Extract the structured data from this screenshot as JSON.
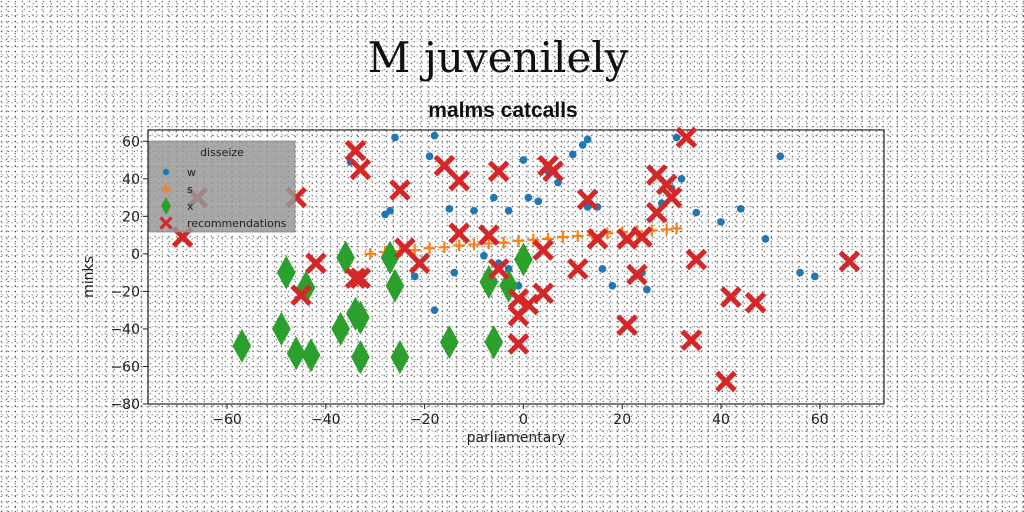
{
  "chart_data": {
    "type": "scatter",
    "title": "M juvenilely",
    "subtitle": "malms catcalls",
    "xlabel": "parliamentary",
    "ylabel": "minks",
    "xlim": [
      -76,
      73
    ],
    "ylim": [
      -80,
      66
    ],
    "xticks": [
      -60,
      -40,
      -20,
      0,
      20,
      40,
      60
    ],
    "yticks": [
      -80,
      -60,
      -40,
      -20,
      0,
      20,
      40,
      60
    ],
    "grid": false,
    "legend": {
      "title": "disseize",
      "placement": "top-left",
      "background": "#999999"
    },
    "series": [
      {
        "name": "w",
        "marker": "circle",
        "color": "#1f77b4",
        "points": [
          [
            -35,
            49
          ],
          [
            -26,
            62
          ],
          [
            -19,
            52
          ],
          [
            -18,
            63
          ],
          [
            -28,
            21
          ],
          [
            -27,
            23
          ],
          [
            -15,
            24
          ],
          [
            -10,
            23
          ],
          [
            -6,
            30
          ],
          [
            -3,
            23
          ],
          [
            0,
            50
          ],
          [
            1,
            30
          ],
          [
            3,
            28
          ],
          [
            5,
            44
          ],
          [
            7,
            38
          ],
          [
            10,
            53
          ],
          [
            12,
            58
          ],
          [
            13,
            61
          ],
          [
            13,
            25
          ],
          [
            15,
            25
          ],
          [
            -5,
            -5
          ],
          [
            -3,
            -8
          ],
          [
            -1,
            -17
          ],
          [
            -22,
            -12
          ],
          [
            -18,
            -30
          ],
          [
            -8,
            -1
          ],
          [
            16,
            -8
          ],
          [
            18,
            -17
          ],
          [
            24,
            -10
          ],
          [
            25,
            -19
          ],
          [
            28,
            27
          ],
          [
            30,
            35
          ],
          [
            32,
            40
          ],
          [
            35,
            22
          ],
          [
            40,
            17
          ],
          [
            44,
            24
          ],
          [
            49,
            8
          ],
          [
            52,
            52
          ],
          [
            56,
            -10
          ],
          [
            59,
            -12
          ],
          [
            31,
            62
          ],
          [
            -14,
            -10
          ]
        ]
      },
      {
        "name": "s",
        "marker": "plus",
        "color": "#ff7f0e",
        "points": [
          [
            -31,
            0
          ],
          [
            -28,
            1
          ],
          [
            -25,
            1.5
          ],
          [
            -22,
            2
          ],
          [
            -19,
            3
          ],
          [
            -16,
            3.5
          ],
          [
            -13,
            4.5
          ],
          [
            -10,
            5
          ],
          [
            -7,
            5.5
          ],
          [
            -4,
            6
          ],
          [
            -1,
            7
          ],
          [
            2,
            7.5
          ],
          [
            5,
            8
          ],
          [
            8,
            9
          ],
          [
            11,
            9.5
          ],
          [
            14,
            10
          ],
          [
            17,
            11
          ],
          [
            20,
            11.5
          ],
          [
            23,
            12
          ],
          [
            26,
            12.5
          ],
          [
            29,
            13
          ],
          [
            31,
            13.5
          ]
        ]
      },
      {
        "name": "x",
        "marker": "diamond",
        "color": "#2ca02c",
        "points": [
          [
            -57,
            -49
          ],
          [
            -49,
            -40
          ],
          [
            -48,
            -10
          ],
          [
            -46,
            -53
          ],
          [
            -44,
            -18
          ],
          [
            -43,
            -54
          ],
          [
            -37,
            -40
          ],
          [
            -36,
            -2
          ],
          [
            -34,
            -32
          ],
          [
            -33,
            -34
          ],
          [
            -33,
            -55
          ],
          [
            -27,
            -2
          ],
          [
            -26,
            -17
          ],
          [
            -25,
            -55
          ],
          [
            -15,
            -47
          ],
          [
            -7,
            -15
          ],
          [
            -6,
            -47
          ],
          [
            -3,
            -17
          ],
          [
            0,
            -3
          ]
        ]
      },
      {
        "name": "recommendations",
        "marker": "x",
        "color": "#d62728",
        "points": [
          [
            -69,
            9
          ],
          [
            -66,
            30
          ],
          [
            -46,
            30
          ],
          [
            -42,
            -5
          ],
          [
            -45,
            -22
          ],
          [
            -34,
            55
          ],
          [
            -33,
            45
          ],
          [
            -34,
            -13
          ],
          [
            -33,
            -13
          ],
          [
            -25,
            34
          ],
          [
            -24,
            3
          ],
          [
            -21,
            -5
          ],
          [
            -16,
            47
          ],
          [
            -13,
            39
          ],
          [
            -13,
            11
          ],
          [
            -7,
            10
          ],
          [
            -5,
            -8
          ],
          [
            -5,
            44
          ],
          [
            -1,
            -24
          ],
          [
            -1,
            -33
          ],
          [
            -1,
            -48
          ],
          [
            1,
            -27
          ],
          [
            4,
            2
          ],
          [
            4,
            -21
          ],
          [
            5,
            47
          ],
          [
            6,
            44
          ],
          [
            11,
            -8
          ],
          [
            13,
            29
          ],
          [
            15,
            8
          ],
          [
            21,
            8
          ],
          [
            21,
            -38
          ],
          [
            23,
            -11
          ],
          [
            24,
            9
          ],
          [
            27,
            42
          ],
          [
            27,
            22
          ],
          [
            29,
            37
          ],
          [
            30,
            30
          ],
          [
            33,
            62
          ],
          [
            34,
            -46
          ],
          [
            35,
            -3
          ],
          [
            41,
            -68
          ],
          [
            42,
            -23
          ],
          [
            47,
            -26
          ],
          [
            66,
            -4
          ]
        ]
      }
    ]
  }
}
